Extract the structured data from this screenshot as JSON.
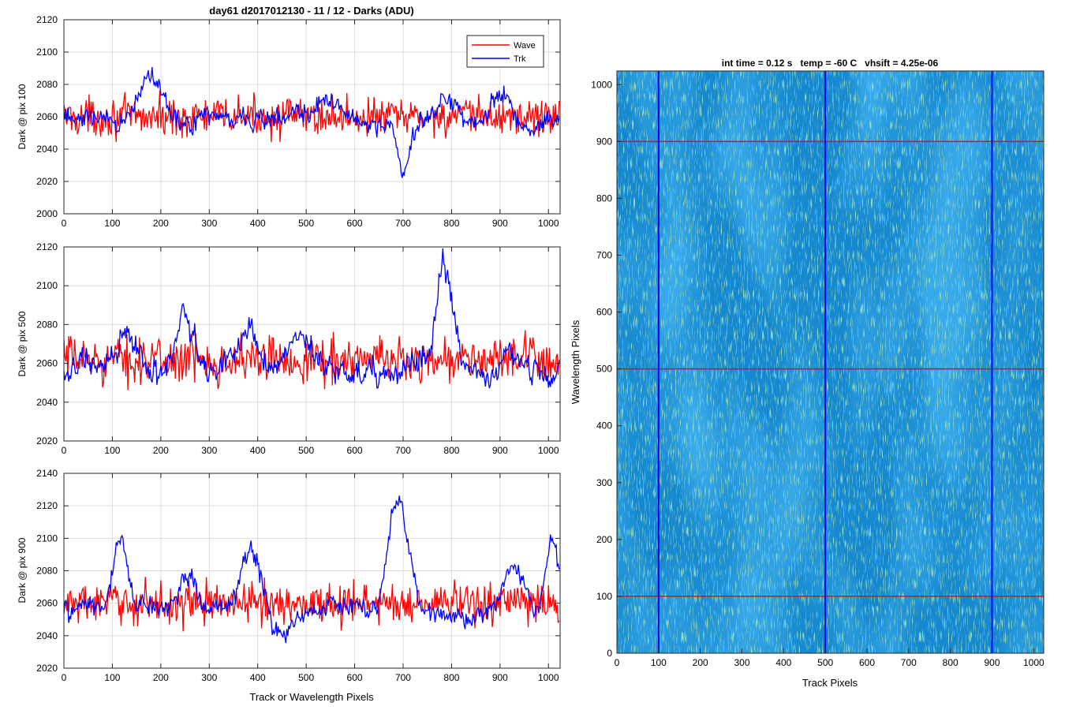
{
  "figure_title": "day61 d2017012130 - 11 / 12 - Darks (ADU)",
  "colors": {
    "wave": "#ff0000",
    "trk": "#0000ff",
    "grid": "#dcdcdc",
    "axis": "#262626"
  },
  "chart_data": [
    {
      "type": "line",
      "panel": "top",
      "title": "",
      "xlabel": "",
      "ylabel": "Dark @ pix 100",
      "xlim": [
        0,
        1024
      ],
      "ylim": [
        2000,
        2120
      ],
      "xticks": [
        0,
        100,
        200,
        300,
        400,
        500,
        600,
        700,
        800,
        900,
        1000
      ],
      "yticks": [
        2000,
        2020,
        2040,
        2060,
        2080,
        2100,
        2120
      ],
      "grid": true,
      "legend": {
        "placement": "top-right",
        "entries": [
          "Wave",
          "Trk"
        ]
      },
      "series": [
        {
          "name": "Wave",
          "color": "#ff0000",
          "shape": {
            "base": 2060,
            "noise": 13,
            "features": []
          }
        },
        {
          "name": "Trk",
          "color": "#0000ff",
          "shape": {
            "base": 2058,
            "noise": 6,
            "features": [
              {
                "center": 180,
                "width": 35,
                "height": 25
              },
              {
                "center": 550,
                "width": 30,
                "height": 10
              },
              {
                "center": 700,
                "width": 20,
                "height": -30
              },
              {
                "center": 790,
                "width": 25,
                "height": 15
              },
              {
                "center": 900,
                "width": 25,
                "height": 20
              }
            ]
          }
        }
      ]
    },
    {
      "type": "line",
      "panel": "middle",
      "title": "",
      "xlabel": "",
      "ylabel": "Dark @ pix 500",
      "xlim": [
        0,
        1024
      ],
      "ylim": [
        2020,
        2120
      ],
      "xticks": [
        0,
        100,
        200,
        300,
        400,
        500,
        600,
        700,
        800,
        900,
        1000
      ],
      "yticks": [
        2020,
        2040,
        2060,
        2080,
        2100,
        2120
      ],
      "grid": true,
      "series": [
        {
          "name": "Wave",
          "color": "#ff0000",
          "shape": {
            "base": 2062,
            "noise": 13,
            "features": []
          }
        },
        {
          "name": "Trk",
          "color": "#0000ff",
          "shape": {
            "base": 2057,
            "noise": 6,
            "features": [
              {
                "center": 130,
                "width": 25,
                "height": 22
              },
              {
                "center": 250,
                "width": 25,
                "height": 28
              },
              {
                "center": 380,
                "width": 25,
                "height": 20
              },
              {
                "center": 490,
                "width": 25,
                "height": 22
              },
              {
                "center": 785,
                "width": 25,
                "height": 55
              },
              {
                "center": 920,
                "width": 20,
                "height": 12
              }
            ]
          }
        }
      ]
    },
    {
      "type": "line",
      "panel": "bottom",
      "title": "",
      "xlabel": "Track or Wavelength Pixels",
      "ylabel": "Dark @ pix 900",
      "xlim": [
        0,
        1024
      ],
      "ylim": [
        2020,
        2140
      ],
      "xticks": [
        0,
        100,
        200,
        300,
        400,
        500,
        600,
        700,
        800,
        900,
        1000
      ],
      "yticks": [
        2020,
        2040,
        2060,
        2080,
        2100,
        2120,
        2140
      ],
      "grid": true,
      "series": [
        {
          "name": "Wave",
          "color": "#ff0000",
          "shape": {
            "base": 2060,
            "noise": 14,
            "features": []
          }
        },
        {
          "name": "Trk",
          "color": "#0000ff",
          "shape": {
            "base": 2055,
            "noise": 6,
            "features": [
              {
                "center": 115,
                "width": 22,
                "height": 40
              },
              {
                "center": 255,
                "width": 25,
                "height": 25
              },
              {
                "center": 385,
                "width": 30,
                "height": 38
              },
              {
                "center": 450,
                "width": 30,
                "height": -15
              },
              {
                "center": 690,
                "width": 30,
                "height": 65
              },
              {
                "center": 930,
                "width": 30,
                "height": 30
              },
              {
                "center": 1010,
                "width": 20,
                "height": 40
              }
            ]
          }
        }
      ]
    },
    {
      "type": "heatmap",
      "panel": "right",
      "title": "int time = 0.12 s   temp = -60 C   vhsift = 4.25e-06",
      "xlabel": "Track Pixels",
      "ylabel": "Wavelength Pixels",
      "xlim": [
        0,
        1024
      ],
      "ylim": [
        0,
        1024
      ],
      "xticks": [
        0,
        100,
        200,
        300,
        400,
        500,
        600,
        700,
        800,
        900,
        1000
      ],
      "yticks": [
        0,
        100,
        200,
        300,
        400,
        500,
        600,
        700,
        800,
        900,
        1000
      ],
      "colormap": [
        "#0a6bd6",
        "#1f97c8",
        "#4ab48d"
      ],
      "horizontal_lines": {
        "color": "#d61414",
        "values": [
          100,
          500,
          900
        ]
      },
      "vertical_lines": {
        "color": "#0000ff",
        "values": [
          100,
          500,
          900
        ]
      }
    }
  ]
}
